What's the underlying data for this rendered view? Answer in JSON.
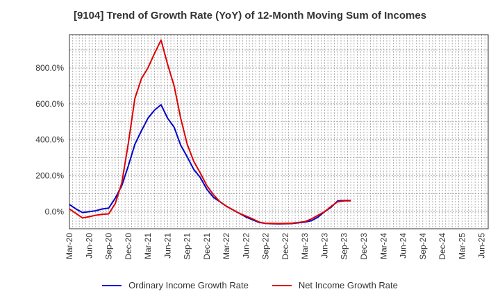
{
  "chart_data": {
    "type": "line",
    "title": "[9104]  Trend of Growth Rate (YoY) of 12-Month Moving Sum of Incomes",
    "x_tick_labels": [
      "Mar-20",
      "Jun-20",
      "Sep-20",
      "Dec-20",
      "Mar-21",
      "Jun-21",
      "Sep-21",
      "Dec-21",
      "Mar-22",
      "Jun-22",
      "Sep-22",
      "Dec-22",
      "Mar-23",
      "Jun-23",
      "Sep-23",
      "Dec-23",
      "Mar-24",
      "Jun-24",
      "Sep-24",
      "Dec-24",
      "Mar-25",
      "Jun-25"
    ],
    "y_tick_labels": [
      "0.0%",
      "200.0%",
      "400.0%",
      "600.0%",
      "800.0%"
    ],
    "ylim": [
      -95,
      985
    ],
    "y_ticks": [
      0,
      200,
      400,
      600,
      800
    ],
    "grid": true,
    "legend_position": "bottom",
    "series": [
      {
        "name": "Ordinary Income Growth Rate",
        "color": "#0000cc",
        "values": [
          40,
          15,
          -5,
          0,
          5,
          15,
          20,
          75,
          145,
          255,
          375,
          450,
          520,
          565,
          595,
          520,
          470,
          370,
          305,
          235,
          190,
          125,
          80,
          55,
          30,
          10,
          -10,
          -30,
          -45,
          -60,
          -65,
          -67,
          -68,
          -67,
          -66,
          -62,
          -58,
          -50,
          -30,
          0,
          25,
          60,
          62,
          62
        ]
      },
      {
        "name": "Net Income Growth Rate",
        "color": "#dd0000",
        "values": [
          15,
          -10,
          -35,
          -28,
          -20,
          -15,
          -12,
          45,
          160,
          380,
          630,
          740,
          800,
          880,
          955,
          820,
          700,
          520,
          375,
          280,
          215,
          145,
          95,
          55,
          30,
          10,
          -10,
          -25,
          -40,
          -58,
          -65,
          -65,
          -66,
          -65,
          -64,
          -60,
          -55,
          -40,
          -20,
          0,
          30,
          55,
          60,
          60
        ]
      }
    ]
  }
}
